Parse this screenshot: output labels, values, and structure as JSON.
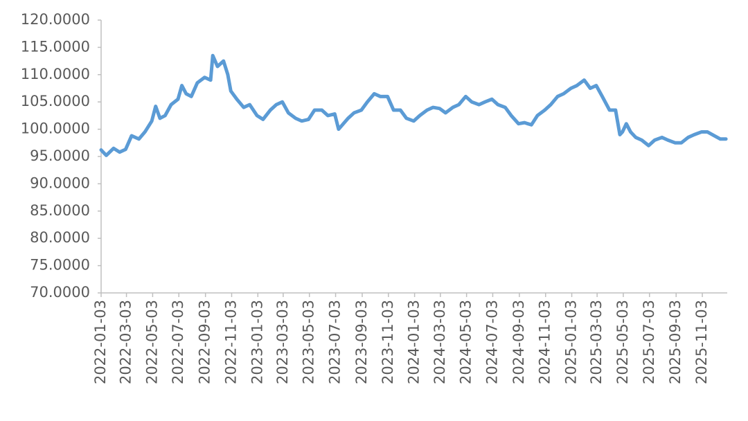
{
  "chart_data": {
    "type": "line",
    "x": [
      "2022-01-03",
      "2022-01-15",
      "2022-02-01",
      "2022-02-15",
      "2022-03-01",
      "2022-03-15",
      "2022-04-01",
      "2022-04-15",
      "2022-05-01",
      "2022-05-10",
      "2022-05-20",
      "2022-06-01",
      "2022-06-15",
      "2022-07-01",
      "2022-07-10",
      "2022-07-20",
      "2022-08-01",
      "2022-08-15",
      "2022-09-01",
      "2022-09-15",
      "2022-09-20",
      "2022-10-01",
      "2022-10-15",
      "2022-10-25",
      "2022-11-01",
      "2022-11-15",
      "2022-12-01",
      "2022-12-15",
      "2023-01-01",
      "2023-01-15",
      "2023-02-01",
      "2023-02-15",
      "2023-03-01",
      "2023-03-15",
      "2023-04-01",
      "2023-04-15",
      "2023-05-01",
      "2023-05-15",
      "2023-06-01",
      "2023-06-15",
      "2023-07-01",
      "2023-07-10",
      "2023-08-01",
      "2023-08-15",
      "2023-09-01",
      "2023-09-15",
      "2023-10-01",
      "2023-10-15",
      "2023-11-01",
      "2023-11-15",
      "2023-12-01",
      "2023-12-15",
      "2024-01-01",
      "2024-01-15",
      "2024-02-01",
      "2024-02-15",
      "2024-03-01",
      "2024-03-15",
      "2024-04-01",
      "2024-04-15",
      "2024-05-01",
      "2024-05-15",
      "2024-06-01",
      "2024-06-15",
      "2024-07-01",
      "2024-07-15",
      "2024-08-01",
      "2024-08-15",
      "2024-09-01",
      "2024-09-15",
      "2024-10-01",
      "2024-10-15",
      "2024-11-01",
      "2024-11-15",
      "2024-12-01",
      "2024-12-15",
      "2025-01-01",
      "2025-01-15",
      "2025-02-01",
      "2025-02-15",
      "2025-03-01",
      "2025-03-15",
      "2025-04-01",
      "2025-04-15",
      "2025-04-25",
      "2025-05-01",
      "2025-05-10",
      "2025-05-20",
      "2025-06-01",
      "2025-06-15",
      "2025-07-01",
      "2025-07-15",
      "2025-08-01",
      "2025-08-15",
      "2025-09-01",
      "2025-09-15",
      "2025-10-01",
      "2025-10-15",
      "2025-11-01",
      "2025-11-15",
      "2025-12-01",
      "2025-12-15",
      "2025-12-28"
    ],
    "series": [
      {
        "color": "#5b9bd5",
        "values": [
          96.2,
          95.2,
          96.5,
          95.8,
          96.3,
          98.8,
          98.2,
          99.5,
          101.5,
          104.2,
          102.0,
          102.5,
          104.5,
          105.5,
          108.0,
          106.5,
          106.0,
          108.5,
          109.5,
          109.0,
          113.5,
          111.5,
          112.5,
          110.0,
          107.0,
          105.5,
          104.0,
          104.5,
          102.5,
          101.8,
          103.5,
          104.5,
          105.0,
          103.0,
          102.0,
          101.5,
          101.8,
          103.5,
          103.5,
          102.5,
          102.8,
          100.0,
          102.0,
          103.0,
          103.5,
          105.0,
          106.5,
          106.0,
          106.0,
          103.5,
          103.5,
          102.0,
          101.5,
          102.5,
          103.5,
          104.0,
          103.8,
          103.0,
          104.0,
          104.5,
          106.0,
          105.0,
          104.5,
          105.0,
          105.5,
          104.5,
          104.0,
          102.5,
          101.0,
          101.2,
          100.8,
          102.5,
          103.5,
          104.5,
          106.0,
          106.5,
          107.5,
          108.0,
          109.0,
          107.5,
          108.0,
          106.0,
          103.5,
          103.5,
          99.0,
          99.5,
          101.0,
          99.5,
          98.5,
          98.0,
          97.0,
          98.0,
          98.5,
          98.0,
          97.5,
          97.5,
          98.5,
          99.0,
          99.5,
          99.5,
          98.8,
          98.2,
          98.2
        ]
      }
    ],
    "xlim": [
      "2022-01-03",
      "2025-12-31"
    ],
    "xticks": [
      "2022-01-03",
      "2022-03-03",
      "2022-05-03",
      "2022-07-03",
      "2022-09-03",
      "2022-11-03",
      "2023-01-03",
      "2023-03-03",
      "2023-05-03",
      "2023-07-03",
      "2023-09-03",
      "2023-11-03",
      "2024-01-03",
      "2024-03-03",
      "2024-05-03",
      "2024-07-03",
      "2024-09-03",
      "2024-11-03",
      "2025-01-03",
      "2025-03-03",
      "2025-05-03",
      "2025-07-03",
      "2025-09-03",
      "2025-11-03"
    ],
    "ylim": [
      70,
      120
    ],
    "yticks": [
      {
        "value": 70,
        "label": "70.0000"
      },
      {
        "value": 75,
        "label": "75.0000"
      },
      {
        "value": 80,
        "label": "80.0000"
      },
      {
        "value": 85,
        "label": "85.0000"
      },
      {
        "value": 90,
        "label": "90.0000"
      },
      {
        "value": 95,
        "label": "95.0000"
      },
      {
        "value": 100,
        "label": "100.0000"
      },
      {
        "value": 105,
        "label": "105.0000"
      },
      {
        "value": 110,
        "label": "110.0000"
      },
      {
        "value": 115,
        "label": "115.0000"
      },
      {
        "value": 120,
        "label": "120.0000"
      }
    ],
    "grid": false
  }
}
